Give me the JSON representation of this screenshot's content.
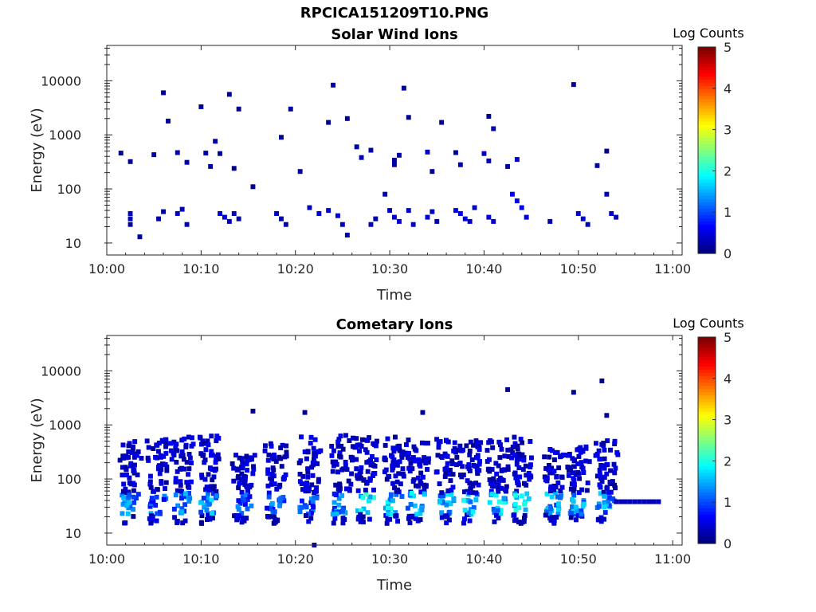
{
  "figure_title": "RPCICA151209T10.PNG",
  "colorbar": {
    "label": "Log Counts",
    "range": [
      0,
      5
    ],
    "ticks": [
      "0",
      "1",
      "2",
      "3",
      "4",
      "5"
    ],
    "colormap": "jet"
  },
  "chart_data": [
    {
      "type": "heatmap",
      "title": "Solar Wind Ions",
      "xlabel": "Time",
      "ylabel": "Energy (eV)",
      "x_ticks": [
        "10:00",
        "10:10",
        "10:20",
        "10:30",
        "10:40",
        "10:50",
        "11:00"
      ],
      "x_range_min": [
        0,
        61
      ],
      "y_scale": "log",
      "y_ticks": [
        "10",
        "100",
        "1000",
        "10000"
      ],
      "y_range_eV": [
        6,
        45000
      ],
      "color_value_range": [
        0,
        5
      ],
      "cells": [
        [
          1.5,
          460,
          0.1
        ],
        [
          2.5,
          320,
          0.1
        ],
        [
          5,
          430,
          0.2
        ],
        [
          6,
          6000,
          0.1
        ],
        [
          6.5,
          1800,
          0.1
        ],
        [
          7.5,
          470,
          0.2
        ],
        [
          8.5,
          310,
          0.2
        ],
        [
          10,
          3300,
          0.1
        ],
        [
          10.5,
          460,
          0.2
        ],
        [
          11,
          260,
          0.2
        ],
        [
          11.5,
          760,
          0.2
        ],
        [
          12,
          450,
          0.1
        ],
        [
          13,
          5600,
          0.1
        ],
        [
          13.5,
          240,
          0.1
        ],
        [
          14,
          3000,
          0.1
        ],
        [
          15.5,
          110,
          0.1
        ],
        [
          18.5,
          900,
          0.1
        ],
        [
          19.5,
          3000,
          0.1
        ],
        [
          20.5,
          210,
          0.1
        ],
        [
          23.5,
          1700,
          0.1
        ],
        [
          24,
          8300,
          0.1
        ],
        [
          25.5,
          2000,
          0.1
        ],
        [
          26.5,
          600,
          0.2
        ],
        [
          27,
          380,
          0.3
        ],
        [
          28,
          520,
          0.2
        ],
        [
          30.5,
          340,
          0.2
        ],
        [
          30.5,
          280,
          0.2
        ],
        [
          31,
          420,
          0.2
        ],
        [
          31.5,
          7300,
          0.1
        ],
        [
          32,
          2100,
          0.1
        ],
        [
          34,
          480,
          0.3
        ],
        [
          34.5,
          210,
          0.1
        ],
        [
          35.5,
          1700,
          0.1
        ],
        [
          37,
          470,
          0.2
        ],
        [
          37.5,
          280,
          0.2
        ],
        [
          40,
          450,
          0.4
        ],
        [
          40.5,
          330,
          0.3
        ],
        [
          40.5,
          2200,
          0.1
        ],
        [
          41,
          1300,
          0.2
        ],
        [
          42.5,
          260,
          0.2
        ],
        [
          43.5,
          350,
          0.3
        ],
        [
          49.5,
          8500,
          0.1
        ],
        [
          52,
          270,
          0.2
        ],
        [
          53,
          500,
          0.1
        ],
        [
          2.5,
          35,
          0.3
        ],
        [
          2.5,
          28,
          0.3
        ],
        [
          2.5,
          22,
          0.2
        ],
        [
          3.5,
          13,
          0.2
        ],
        [
          5.5,
          28,
          0.2
        ],
        [
          6,
          38,
          0.2
        ],
        [
          7.5,
          35,
          0.3
        ],
        [
          8,
          42,
          0.2
        ],
        [
          8.5,
          22,
          0.2
        ],
        [
          12,
          35,
          0.4
        ],
        [
          12.5,
          30,
          0.4
        ],
        [
          13,
          25,
          0.3
        ],
        [
          13.5,
          35,
          0.3
        ],
        [
          14,
          28,
          0.2
        ],
        [
          18,
          35,
          0.3
        ],
        [
          18.5,
          28,
          0.2
        ],
        [
          19,
          22,
          0.2
        ],
        [
          21.5,
          45,
          0.2
        ],
        [
          22.5,
          35,
          0.4
        ],
        [
          23.5,
          40,
          0.4
        ],
        [
          24.5,
          32,
          0.4
        ],
        [
          25,
          22,
          0.3
        ],
        [
          25.5,
          14,
          0.2
        ],
        [
          28,
          22,
          0.3
        ],
        [
          28.5,
          28,
          0.2
        ],
        [
          29.5,
          80,
          0.2
        ],
        [
          30,
          40,
          0.3
        ],
        [
          30.5,
          30,
          0.4
        ],
        [
          31,
          25,
          0.4
        ],
        [
          32,
          40,
          0.4
        ],
        [
          32.5,
          22,
          0.3
        ],
        [
          34,
          30,
          0.4
        ],
        [
          34.5,
          38,
          0.3
        ],
        [
          35,
          25,
          0.2
        ],
        [
          37,
          40,
          0.5
        ],
        [
          37.5,
          35,
          0.6
        ],
        [
          38,
          28,
          0.5
        ],
        [
          38.5,
          25,
          0.4
        ],
        [
          39,
          45,
          0.3
        ],
        [
          40.5,
          30,
          0.5
        ],
        [
          41,
          25,
          0.4
        ],
        [
          43,
          80,
          0.6
        ],
        [
          43.5,
          60,
          0.5
        ],
        [
          44,
          45,
          0.5
        ],
        [
          44.5,
          30,
          0.4
        ],
        [
          47,
          25,
          0.2
        ],
        [
          50,
          35,
          0.4
        ],
        [
          50.5,
          28,
          0.4
        ],
        [
          51,
          22,
          0.3
        ],
        [
          53,
          80,
          0.3
        ],
        [
          53.5,
          35,
          0.4
        ],
        [
          54,
          30,
          0.3
        ]
      ]
    },
    {
      "type": "heatmap",
      "title": "Cometary Ions",
      "xlabel": "Time",
      "ylabel": "Energy (eV)",
      "x_ticks": [
        "10:00",
        "10:10",
        "10:20",
        "10:30",
        "10:40",
        "10:50",
        "11:00"
      ],
      "x_range_min": [
        0,
        61
      ],
      "y_scale": "log",
      "y_ticks": [
        "10",
        "100",
        "1000",
        "10000"
      ],
      "y_range_eV": [
        6,
        45000
      ],
      "color_value_range": [
        0,
        5
      ],
      "bursts": [
        [
          2.5,
          500,
          0.6
        ],
        [
          5.5,
          550,
          0.5
        ],
        [
          8.0,
          600,
          0.6
        ],
        [
          11.0,
          800,
          0.8
        ],
        [
          14.5,
          300,
          0.5
        ],
        [
          18.0,
          500,
          0.5
        ],
        [
          21.5,
          600,
          0.4
        ],
        [
          25.0,
          650,
          0.6
        ],
        [
          27.5,
          650,
          1.2
        ],
        [
          30.5,
          600,
          1.0
        ],
        [
          33.0,
          550,
          0.9
        ],
        [
          36.0,
          550,
          0.9
        ],
        [
          38.5,
          550,
          1.0
        ],
        [
          41.5,
          550,
          1.0
        ],
        [
          44.0,
          600,
          1.1
        ],
        [
          47.5,
          400,
          0.8
        ],
        [
          50.0,
          400,
          0.8
        ],
        [
          53.0,
          550,
          0.8
        ]
      ],
      "band": {
        "t_start": 54.0,
        "t_end": 58.5,
        "energy_eV": 38,
        "value": 0.3
      },
      "sparse": [
        [
          15.5,
          1800,
          0.1
        ],
        [
          21,
          1700,
          0.1
        ],
        [
          33.5,
          1700,
          0.1
        ],
        [
          42.5,
          4500,
          0.1
        ],
        [
          49.5,
          4000,
          0.1
        ],
        [
          52.5,
          6500,
          0.1
        ],
        [
          53,
          1500,
          0.1
        ],
        [
          22,
          6,
          0.2
        ]
      ]
    }
  ]
}
